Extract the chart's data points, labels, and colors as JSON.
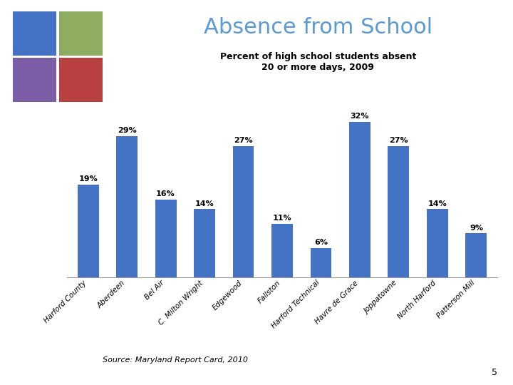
{
  "title": "Absence from School",
  "subtitle": "Percent of high school students absent\n20 or more days, 2009",
  "categories": [
    "Harford County",
    "Aberdeen",
    "Bel Air",
    "C. Milton Wright",
    "Edgewood",
    "Fallston",
    "Harford Technical",
    "Havre de Grace",
    "Joppatowne",
    "North Harford",
    "Patterson Mill"
  ],
  "values": [
    19,
    29,
    16,
    14,
    27,
    11,
    6,
    32,
    27,
    14,
    9
  ],
  "bar_color": "#4472C4",
  "source_text": "Source: Maryland Report Card, 2010",
  "page_number": "5",
  "background_color": "#ffffff",
  "title_color": "#5b9bd5",
  "title_fontsize": 22,
  "subtitle_fontsize": 9,
  "label_fontsize": 8,
  "tick_fontsize": 7.5,
  "logo_colors": [
    [
      "#4472C4",
      "#8fad60"
    ],
    [
      "#7b5ea7",
      "#b94040"
    ]
  ],
  "ylim": [
    0,
    38
  ]
}
